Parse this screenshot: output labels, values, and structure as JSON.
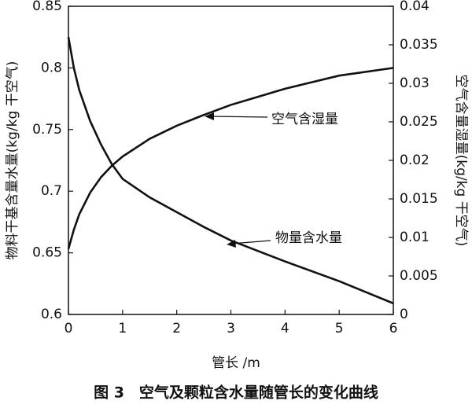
{
  "chart_data": {
    "type": "line",
    "x": [
      0,
      0.1,
      0.2,
      0.4,
      0.6,
      0.8,
      1,
      1.5,
      2,
      2.5,
      3,
      4,
      5,
      6
    ],
    "series": [
      {
        "name": "物量含水量",
        "color": "#111111",
        "values": [
          0.825,
          0.8,
          0.782,
          0.757,
          0.738,
          0.722,
          0.71,
          0.695,
          0.683,
          0.671,
          0.66,
          0.643,
          0.627,
          0.609
        ]
      },
      {
        "name": "空气含湿量",
        "color": "#111111",
        "axis": "y2",
        "values": [
          0.0085,
          0.011,
          0.013,
          0.0158,
          0.0178,
          0.0193,
          0.0205,
          0.0228,
          0.0245,
          0.0259,
          0.0272,
          0.0293,
          0.031,
          0.032
        ]
      }
    ],
    "xlim": [
      0,
      6
    ],
    "xticks": [
      0,
      1,
      2,
      3,
      4,
      5,
      6
    ],
    "ylim": [
      0.6,
      0.85
    ],
    "yticks": [
      0.6,
      0.65,
      0.7,
      0.75,
      0.8,
      0.85
    ],
    "y2lim": [
      0,
      0.04
    ],
    "y2ticks": [
      0,
      0.005,
      0.01,
      0.015,
      0.02,
      0.025,
      0.03,
      0.035,
      0.04
    ],
    "xlabel": "管长 /m",
    "ylabel": "物料干基含量水量(kg/kg 干空气)",
    "y2label": "空气含量湿量(kg/kg 干空气)",
    "caption": "图 3　空气及颗粒含水量随管长的变化曲线"
  }
}
